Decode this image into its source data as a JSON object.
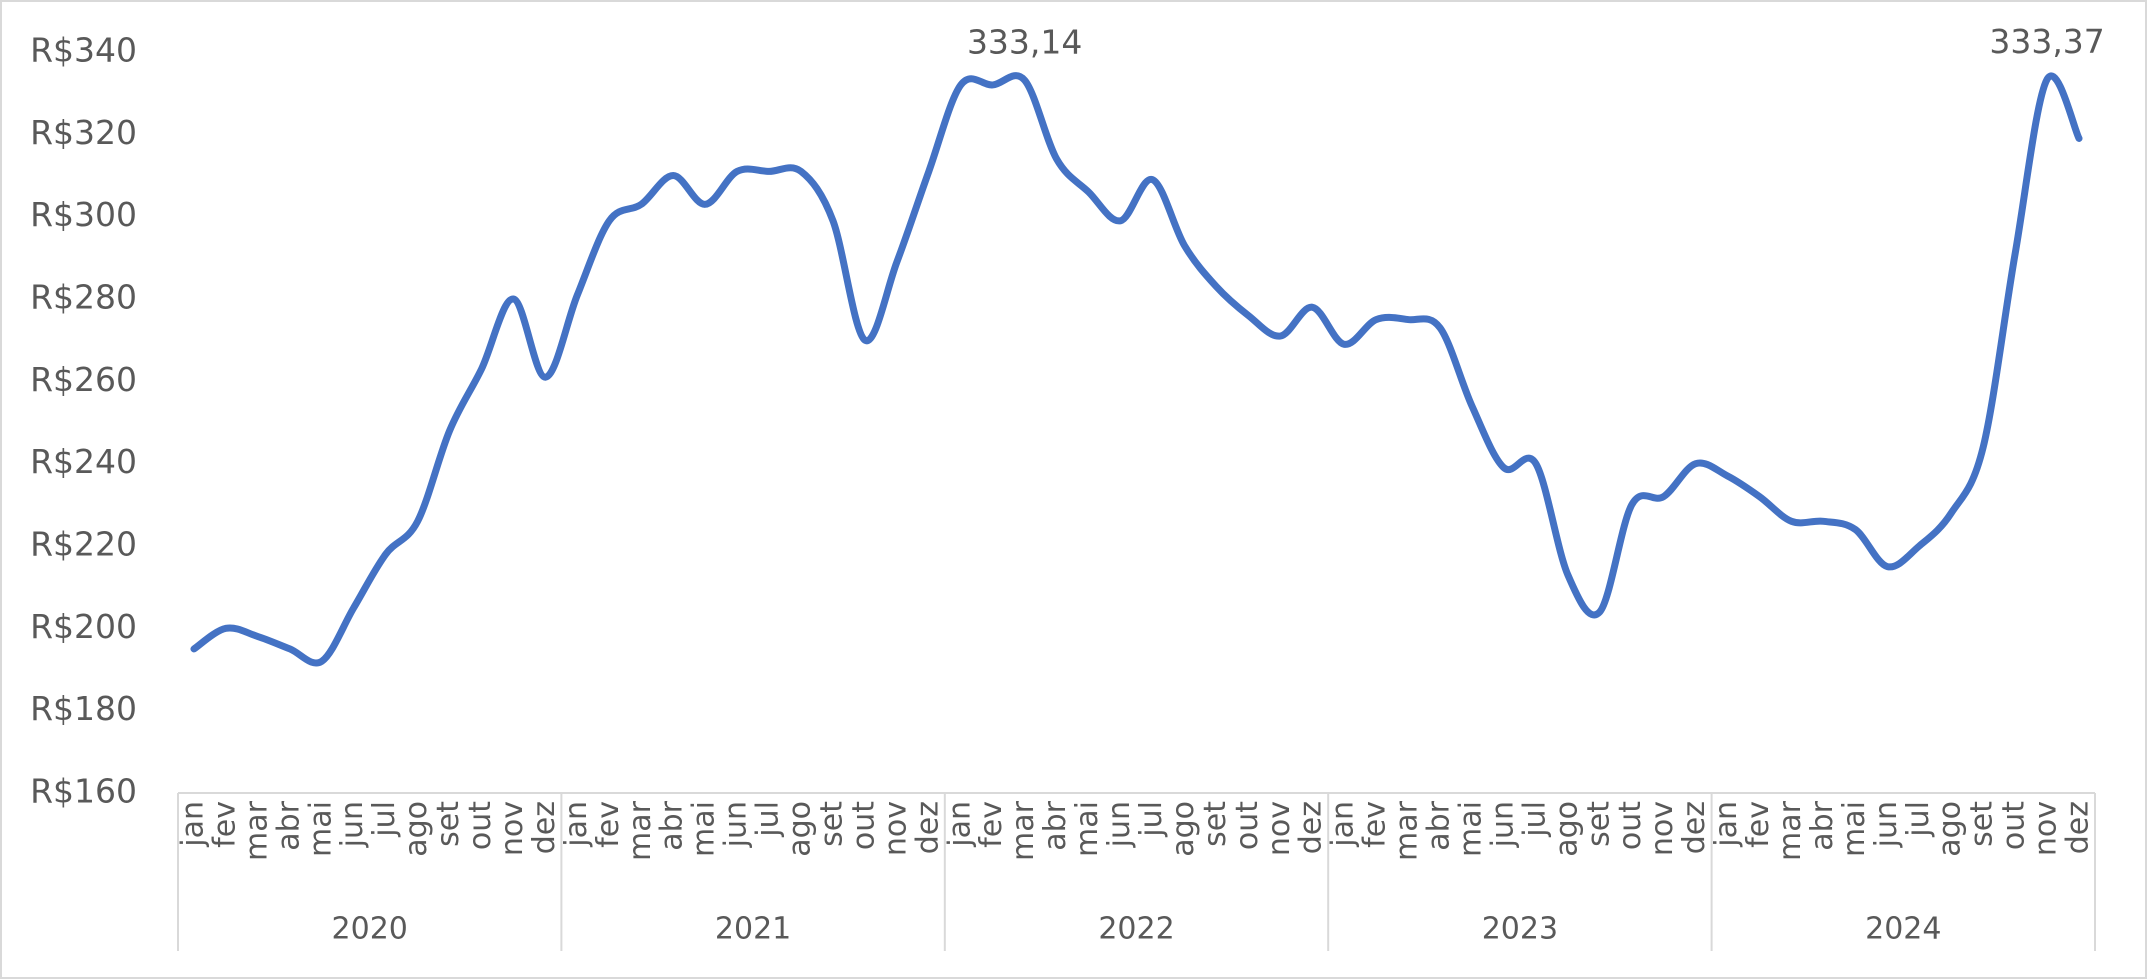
{
  "chart_data": {
    "type": "line",
    "categories": [
      "jan",
      "fev",
      "mar",
      "abr",
      "mai",
      "jun",
      "jul",
      "ago",
      "set",
      "out",
      "nov",
      "dez",
      "jan",
      "fev",
      "mar",
      "abr",
      "mai",
      "jun",
      "jul",
      "ago",
      "set",
      "out",
      "nov",
      "dez",
      "jan",
      "fev",
      "mar",
      "abr",
      "mai",
      "jun",
      "jul",
      "ago",
      "set",
      "out",
      "nov",
      "dez",
      "jan",
      "fev",
      "mar",
      "abr",
      "mai",
      "jun",
      "jul",
      "ago",
      "set",
      "out",
      "nov",
      "dez",
      "jan",
      "fev",
      "mar",
      "abr",
      "mai",
      "jun",
      "jul",
      "ago",
      "set",
      "out",
      "nov",
      "dez"
    ],
    "year_groups": [
      "2020",
      "2021",
      "2022",
      "2023",
      "2024"
    ],
    "values": [
      195,
      200,
      198,
      195,
      192,
      205,
      218,
      226,
      248,
      263,
      280,
      261,
      281,
      299,
      303,
      310,
      303,
      311,
      311,
      311,
      299,
      270,
      289,
      311,
      332,
      332,
      333.14,
      314,
      306,
      299,
      309,
      293,
      283,
      276,
      271,
      278,
      269,
      275,
      275,
      273,
      254,
      239,
      240,
      213,
      204,
      230,
      232,
      240,
      237,
      232,
      226,
      226,
      224,
      215,
      220,
      228,
      244,
      291,
      333.37,
      319
    ],
    "value_labels": [
      null,
      null,
      null,
      null,
      null,
      null,
      null,
      null,
      null,
      null,
      null,
      null,
      null,
      null,
      null,
      null,
      null,
      null,
      null,
      null,
      null,
      null,
      null,
      null,
      null,
      null,
      "333,14",
      null,
      null,
      null,
      null,
      null,
      null,
      null,
      null,
      null,
      null,
      null,
      null,
      null,
      null,
      null,
      null,
      null,
      null,
      null,
      null,
      null,
      null,
      null,
      null,
      null,
      null,
      null,
      null,
      null,
      null,
      null,
      "333,37",
      null
    ],
    "color": "#4472c4",
    "ylim": [
      160,
      340
    ],
    "yticks": [
      {
        "value": 160,
        "label": "R$160"
      },
      {
        "value": 180,
        "label": "R$180"
      },
      {
        "value": 200,
        "label": "R$200"
      },
      {
        "value": 220,
        "label": "R$220"
      },
      {
        "value": 240,
        "label": "R$240"
      },
      {
        "value": 260,
        "label": "R$260"
      },
      {
        "value": 280,
        "label": "R$280"
      },
      {
        "value": 300,
        "label": "R$300"
      },
      {
        "value": 320,
        "label": "R$320"
      },
      {
        "value": 340,
        "label": "R$340"
      }
    ],
    "grid": false
  }
}
